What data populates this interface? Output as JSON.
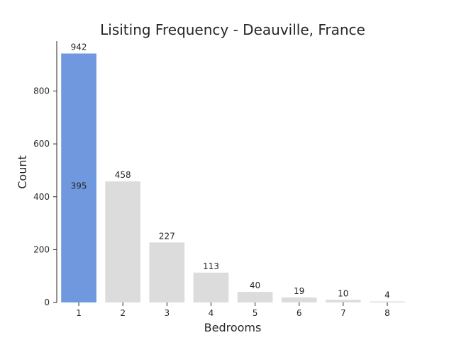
{
  "chart_data": {
    "type": "bar",
    "title": "Lisiting Frequency - Deauville, France",
    "xlabel": "Bedrooms",
    "ylabel": "Count",
    "categories": [
      "1",
      "2",
      "3",
      "4",
      "5",
      "6",
      "7",
      "8"
    ],
    "values": [
      942,
      458,
      227,
      113,
      40,
      19,
      10,
      4
    ],
    "data_labels": [
      "942",
      "458",
      "227",
      "113",
      "40",
      "19",
      "10",
      "4"
    ],
    "ylim": [
      0,
      989
    ],
    "yticks": [
      0,
      200,
      400,
      600,
      800
    ],
    "ytick_labels": [
      "0",
      "200",
      "400",
      "600",
      "800"
    ],
    "grid": false,
    "highlight_index": 0,
    "annotation": {
      "text": "395",
      "category": "1",
      "y": 417
    },
    "colors": {
      "highlight": "#6f98de",
      "default": "#dcdcdc",
      "text": "#262626",
      "axis": "#262626"
    }
  }
}
